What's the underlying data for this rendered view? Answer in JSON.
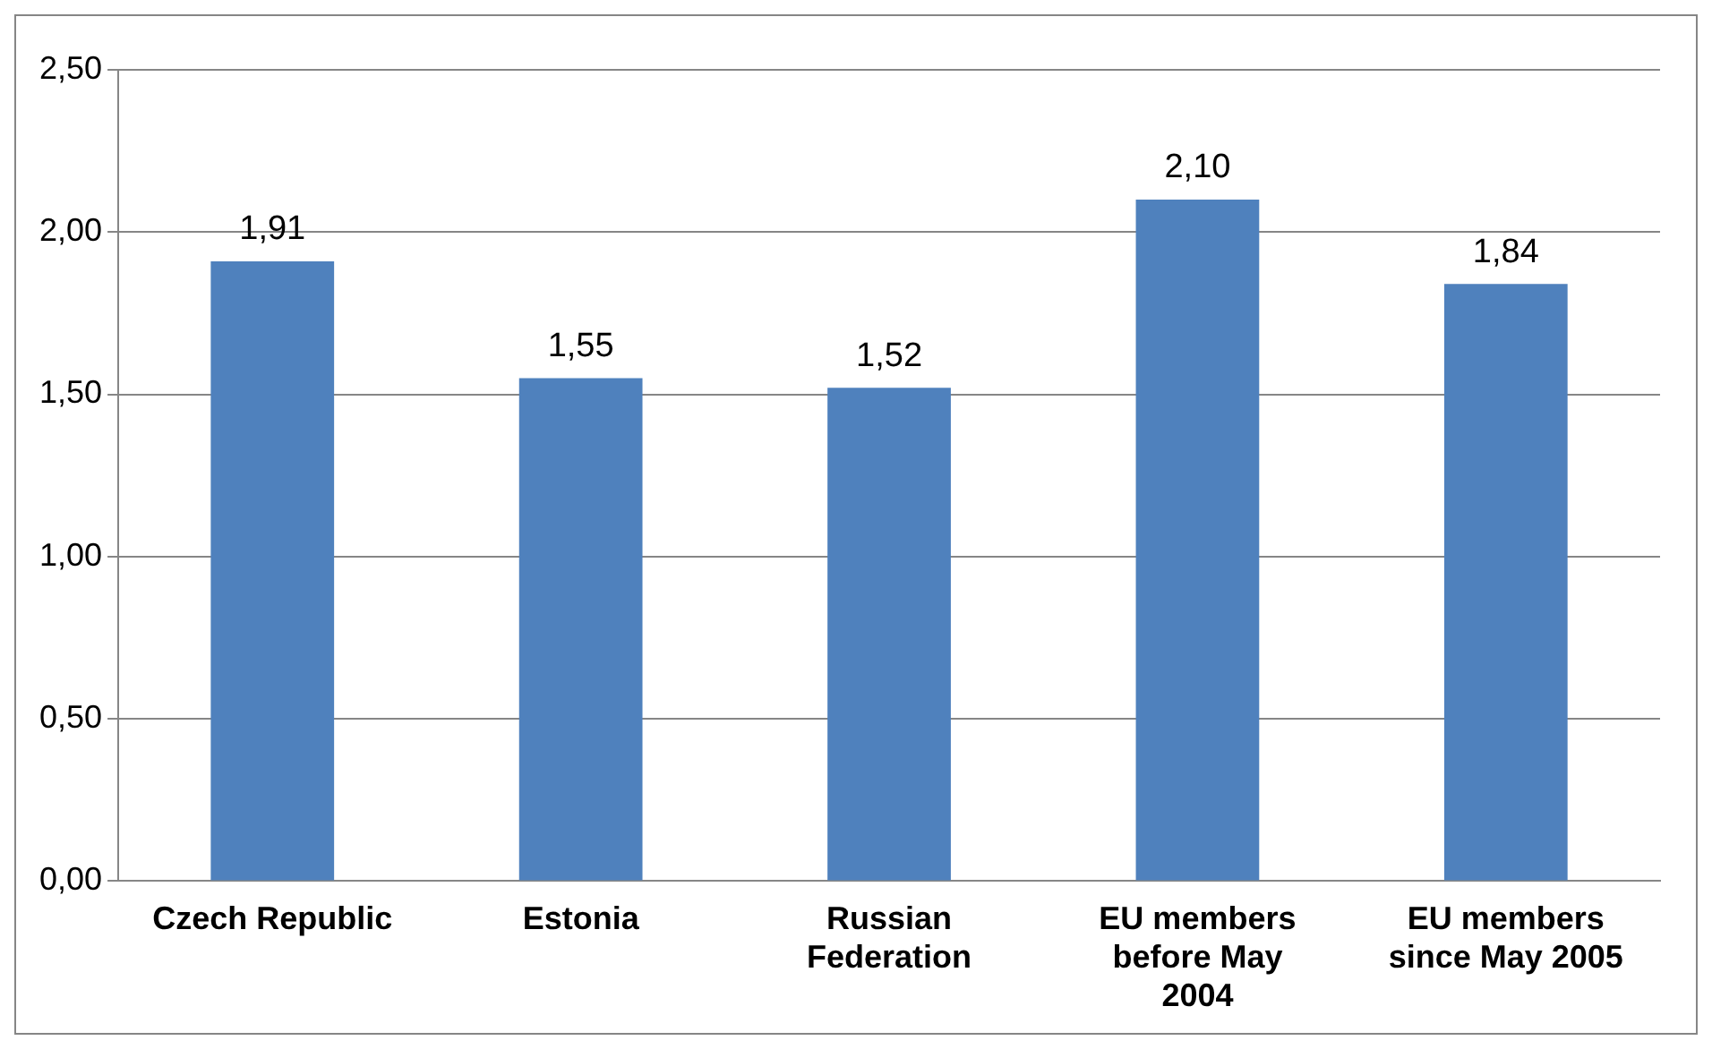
{
  "chart_data": {
    "type": "bar",
    "categories": [
      "Czech Republic",
      "Estonia",
      "Russian Federation",
      "EU members before May 2004",
      "EU members since May 2005"
    ],
    "values": [
      1.91,
      1.55,
      1.52,
      2.1,
      1.84
    ],
    "value_labels": [
      "1,91",
      "1,55",
      "1,52",
      "2,10",
      "1,84"
    ],
    "color": "#4f81bd",
    "ylim": [
      0,
      2.5
    ],
    "yticks": [
      {
        "value": 0,
        "label": "0,00"
      },
      {
        "value": 0.5,
        "label": "0,50"
      },
      {
        "value": 1,
        "label": "1,00"
      },
      {
        "value": 1.5,
        "label": "1,50"
      },
      {
        "value": 2,
        "label": "2,00"
      },
      {
        "value": 2.5,
        "label": "2,50"
      }
    ],
    "grid": "y",
    "legend": false
  }
}
